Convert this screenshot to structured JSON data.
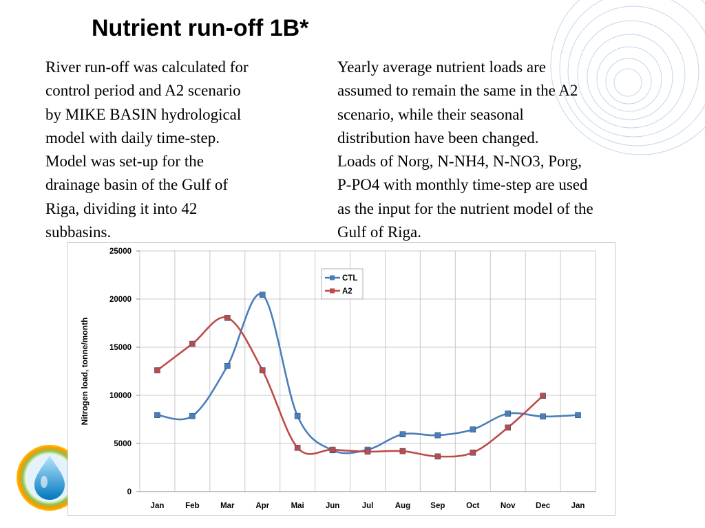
{
  "slide": {
    "title": "Nutrient run-off 1B*",
    "left_text_lines": [
      "River run-off was calculated for",
      "control period and A2 scenario",
      "by MIKE BASIN hydrological",
      "model with daily time-step.",
      "Model was set-up for the",
      "drainage basin of the Gulf of",
      "Riga, dividing it into 42",
      "subbasins."
    ],
    "right_text_lines": [
      "Yearly average nutrient loads are",
      "assumed to remain the same in the A2",
      "scenario, while their seasonal",
      "distribution have been changed.",
      "Loads of Norg, N-NH4, N-NO3, Porg,",
      "P-PO4 with monthly time-step are used",
      "as the input for the nutrient model of the",
      "Gulf of Riga."
    ],
    "decor_icon": "water-drop-logo-icon",
    "colors": {
      "decor_circles": "#a9c5e4",
      "ctl": "#4a7ebb",
      "a2": "#be4b48"
    }
  },
  "chart_data": {
    "type": "line",
    "categories": [
      "Jan",
      "Feb",
      "Mar",
      "Apr",
      "Mai",
      "Jun",
      "Jul",
      "Aug",
      "Sep",
      "Oct",
      "Nov",
      "Dec",
      "Jan"
    ],
    "series": [
      {
        "name": "CTL",
        "color": "#4a7ebb",
        "values": [
          7950,
          7850,
          13050,
          20450,
          7850,
          4300,
          4350,
          5950,
          5850,
          6450,
          8100,
          7800,
          7950
        ]
      },
      {
        "name": "A2",
        "color": "#be4b48",
        "values": [
          12600,
          15350,
          18050,
          12600,
          4550,
          4350,
          4150,
          4200,
          3650,
          4050,
          6650,
          9950,
          null
        ]
      }
    ],
    "title": "",
    "xlabel": "",
    "ylabel": "Nitrogen load, tonne/month",
    "ylim": [
      0,
      25000
    ],
    "yticks": [
      0,
      5000,
      10000,
      15000,
      20000,
      25000
    ],
    "grid": true,
    "legend": "top-center",
    "smooth": true
  }
}
